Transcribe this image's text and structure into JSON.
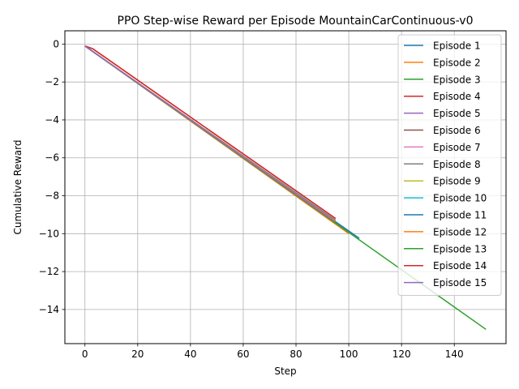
{
  "chart_data": {
    "type": "line",
    "title": "PPO Step-wise Reward per Episode MountainCarContinuous-v0",
    "xlabel": "Step",
    "ylabel": "Cumulative Reward",
    "xlim": [
      -7.6,
      159.6
    ],
    "ylim": [
      -15.8,
      0.7
    ],
    "xticks": [
      0,
      20,
      40,
      60,
      80,
      100,
      120,
      140
    ],
    "yticks": [
      0,
      -2,
      -4,
      -6,
      -8,
      -10,
      -12,
      -14
    ],
    "grid": true,
    "legend_position": "top-right",
    "series": [
      {
        "name": "Episode 1",
        "color": "#1f77b4",
        "x": [
          0,
          95
        ],
        "y": [
          -0.1,
          -9.3
        ]
      },
      {
        "name": "Episode 2",
        "color": "#ff7f0e",
        "x": [
          0,
          100
        ],
        "y": [
          -0.1,
          -10.0
        ]
      },
      {
        "name": "Episode 3",
        "color": "#2ca02c",
        "x": [
          0,
          95
        ],
        "y": [
          -0.1,
          -9.4
        ]
      },
      {
        "name": "Episode 4",
        "color": "#d62728",
        "x": [
          0,
          3,
          95
        ],
        "y": [
          -0.1,
          -0.25,
          -9.2
        ]
      },
      {
        "name": "Episode 5",
        "color": "#9467bd",
        "x": [
          0,
          94
        ],
        "y": [
          -0.1,
          -9.3
        ]
      },
      {
        "name": "Episode 6",
        "color": "#8c564b",
        "x": [
          0,
          94
        ],
        "y": [
          -0.1,
          -9.3
        ]
      },
      {
        "name": "Episode 7",
        "color": "#e377c2",
        "x": [
          0,
          94
        ],
        "y": [
          -0.1,
          -9.3
        ]
      },
      {
        "name": "Episode 8",
        "color": "#7f7f7f",
        "x": [
          0,
          94
        ],
        "y": [
          -0.1,
          -9.3
        ]
      },
      {
        "name": "Episode 9",
        "color": "#bcbd22",
        "x": [
          0,
          94
        ],
        "y": [
          -0.1,
          -9.3
        ]
      },
      {
        "name": "Episode 10",
        "color": "#17becf",
        "x": [
          0,
          94
        ],
        "y": [
          -0.1,
          -9.3
        ]
      },
      {
        "name": "Episode 11",
        "color": "#1f77b4",
        "x": [
          0,
          104
        ],
        "y": [
          -0.1,
          -10.25
        ]
      },
      {
        "name": "Episode 12",
        "color": "#ff7f0e",
        "x": [
          0,
          95
        ],
        "y": [
          -0.1,
          -9.35
        ]
      },
      {
        "name": "Episode 13",
        "color": "#2ca02c",
        "x": [
          0,
          152
        ],
        "y": [
          -0.1,
          -15.05
        ]
      },
      {
        "name": "Episode 14",
        "color": "#d62728",
        "x": [
          0,
          3,
          95
        ],
        "y": [
          -0.1,
          -0.25,
          -9.2
        ]
      },
      {
        "name": "Episode 15",
        "color": "#9467bd",
        "x": [
          0,
          94
        ],
        "y": [
          -0.1,
          -9.3
        ]
      }
    ]
  }
}
